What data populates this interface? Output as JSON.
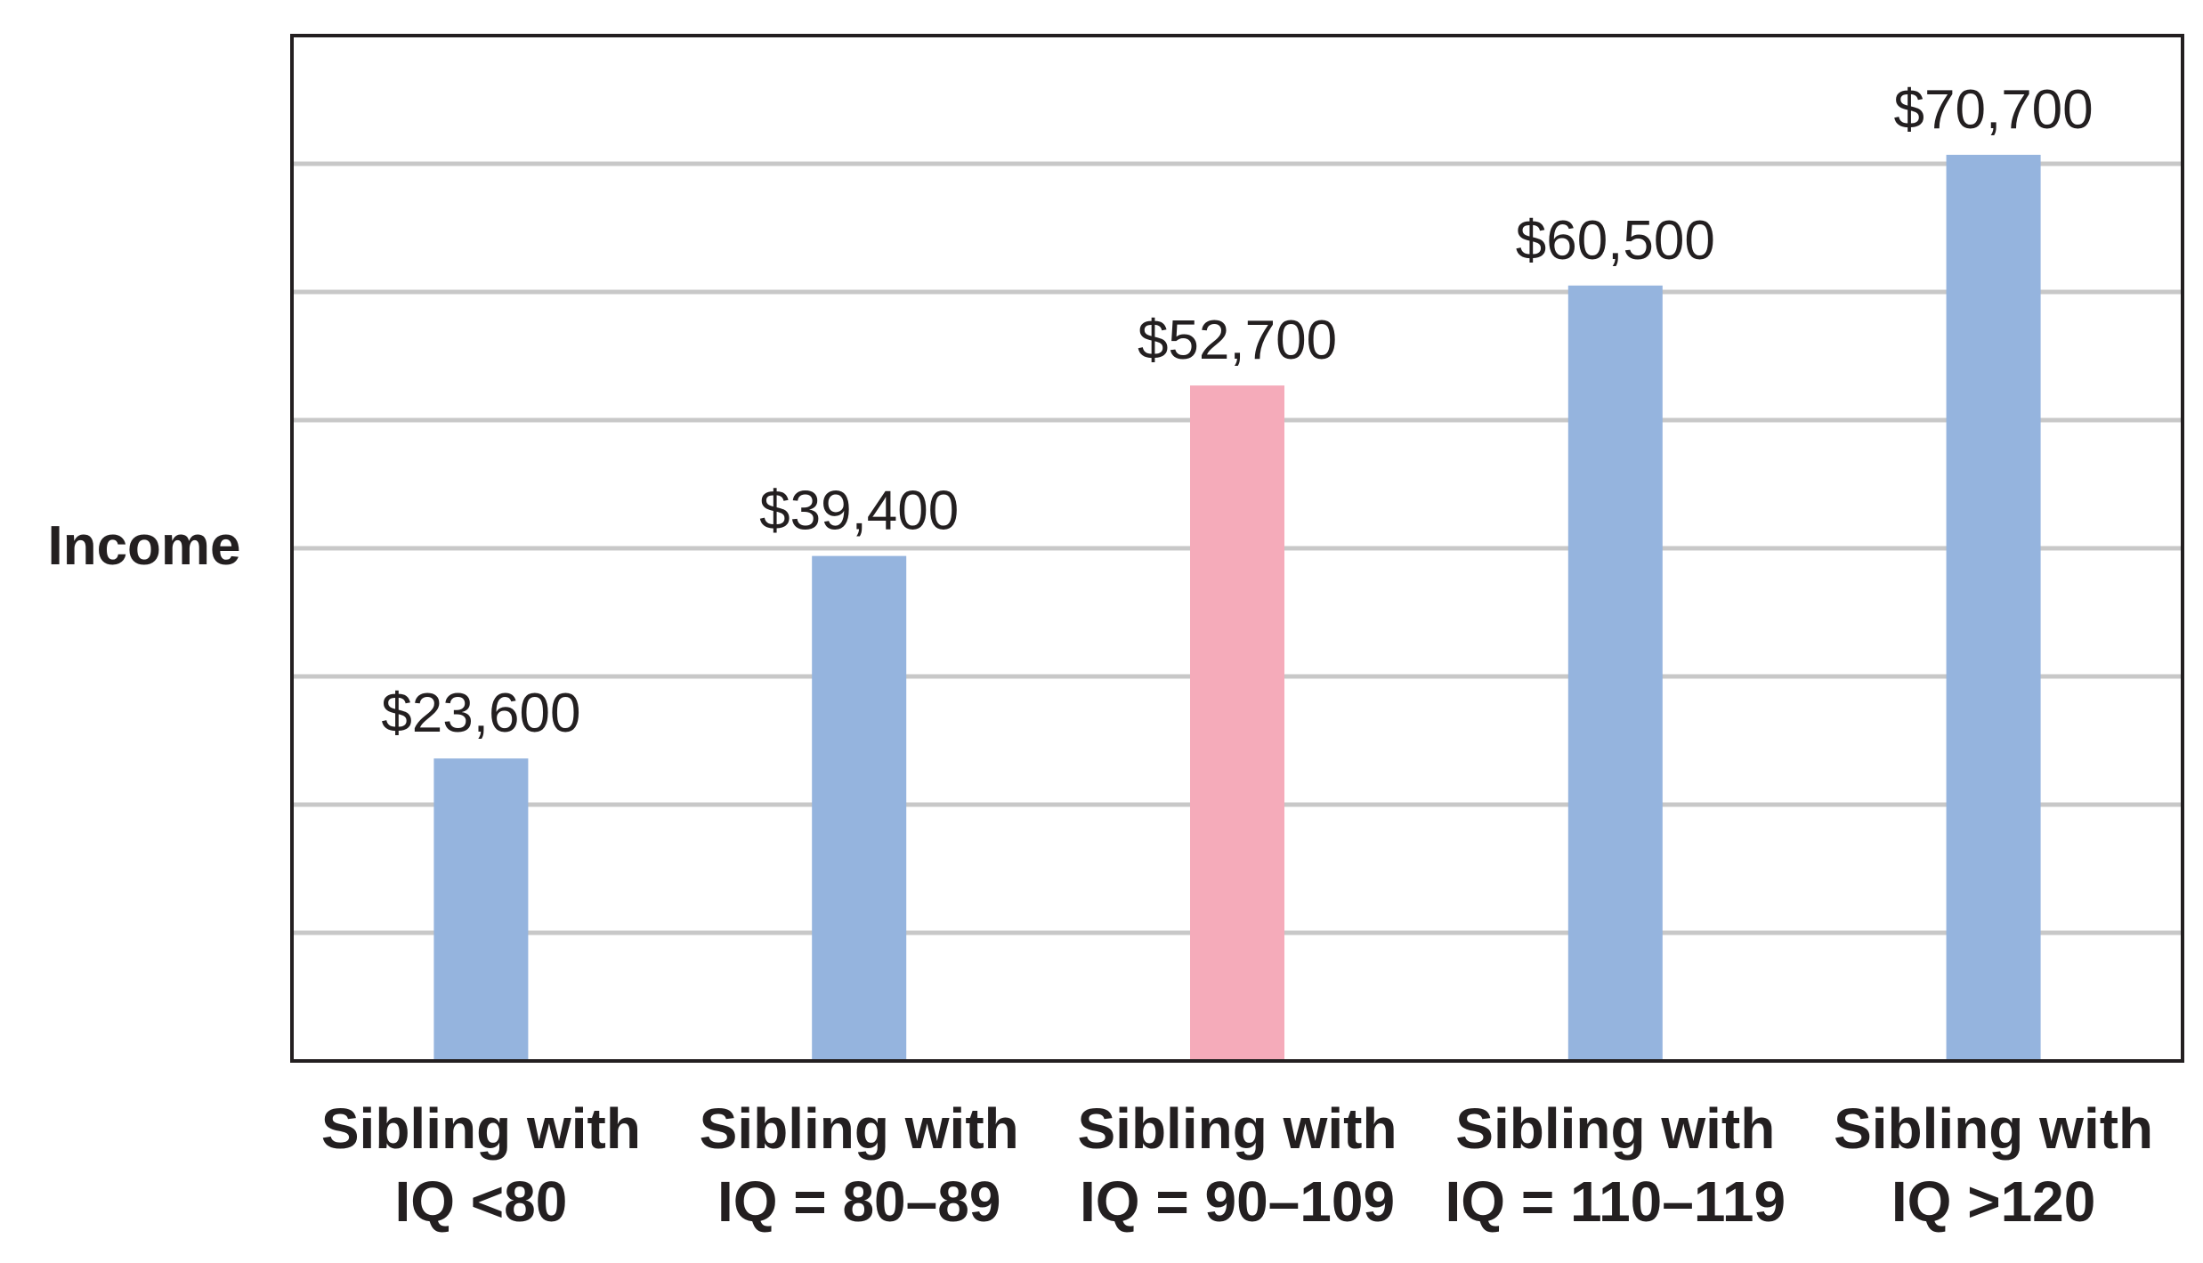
{
  "chart_data": {
    "type": "bar",
    "title": "",
    "xlabel": "",
    "ylabel": "Income",
    "categories": [
      [
        "Sibling with",
        "IQ <80"
      ],
      [
        "Sibling with",
        "IQ = 80–89"
      ],
      [
        "Sibling with",
        "IQ = 90–109"
      ],
      [
        "Sibling with",
        "IQ = 110–119"
      ],
      [
        "Sibling with",
        "IQ >120"
      ]
    ],
    "values": [
      23600,
      39400,
      52700,
      60500,
      70700
    ],
    "value_labels": [
      "$23,600",
      "$39,400",
      "$52,700",
      "$60,500",
      "$70,700"
    ],
    "ylim": [
      0,
      80000
    ],
    "grid": true,
    "bar_colors": [
      "#95b4de",
      "#95b4de",
      "#f5abba",
      "#95b4de",
      "#95b4de"
    ]
  }
}
